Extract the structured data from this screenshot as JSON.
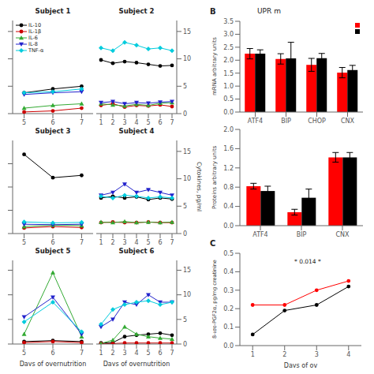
{
  "chart_data": [
    {
      "type": "line",
      "title": "Subject 1",
      "x": [
        5,
        6,
        7
      ],
      "xlim": [
        4.6,
        7.4
      ],
      "xticks": [
        5,
        6,
        7
      ],
      "ylim": [
        0,
        17
      ],
      "yticks": [
        0,
        5,
        10,
        15
      ],
      "tick_labels": "x",
      "legend": "upper left",
      "series": [
        {
          "name": "IL-10",
          "color": "black",
          "marker": "circle",
          "values": [
            3.8,
            4.5,
            5.0
          ]
        },
        {
          "name": "IL-1β",
          "color": "#cc0000",
          "marker": "circle",
          "values": [
            0.3,
            0.5,
            1.0
          ]
        },
        {
          "name": "IL-6",
          "color": "#33aa33",
          "marker": "triangle-up",
          "values": [
            1.0,
            1.5,
            1.8
          ]
        },
        {
          "name": "IL-8",
          "color": "#2222cc",
          "marker": "triangle-down",
          "values": [
            3.5,
            3.8,
            4.0
          ]
        },
        {
          "name": "TNF-α",
          "color": "#00ccdd",
          "marker": "diamond",
          "values": [
            3.8,
            4.0,
            4.5
          ]
        }
      ]
    },
    {
      "type": "line",
      "title": "Subject 2",
      "x": [
        1,
        2,
        3,
        4,
        5,
        6,
        7
      ],
      "xlim": [
        0.6,
        7.4
      ],
      "xticks": [
        1,
        2,
        3,
        4,
        5,
        6,
        7
      ],
      "ylim": [
        0,
        17
      ],
      "yticks": [
        0,
        5,
        10,
        15
      ],
      "series": [
        {
          "name": "IL-10",
          "color": "black",
          "marker": "circle",
          "values": [
            9.8,
            9.2,
            9.5,
            9.3,
            9.0,
            8.7,
            8.8
          ]
        },
        {
          "name": "IL-1β",
          "color": "#cc0000",
          "marker": "circle",
          "values": [
            1.5,
            1.8,
            1.2,
            1.5,
            1.4,
            1.6,
            1.3
          ]
        },
        {
          "name": "IL-6",
          "color": "#33aa33",
          "marker": "triangle-up",
          "values": [
            1.8,
            1.6,
            1.4,
            1.7,
            1.5,
            1.9,
            2.0
          ]
        },
        {
          "name": "IL-8",
          "color": "#2222cc",
          "marker": "triangle-down",
          "values": [
            2.0,
            2.2,
            1.8,
            2.0,
            1.9,
            2.1,
            2.2
          ]
        },
        {
          "name": "TNF-α",
          "color": "#00ccdd",
          "marker": "diamond",
          "values": [
            12.0,
            11.5,
            13.0,
            12.5,
            11.8,
            12.0,
            11.5
          ]
        }
      ]
    },
    {
      "type": "line",
      "title": "Subject 3",
      "x": [
        5,
        6,
        7
      ],
      "xlim": [
        4.6,
        7.4
      ],
      "xticks": [
        5,
        6,
        7
      ],
      "ylim": [
        0,
        20
      ],
      "yticks": [
        0,
        5,
        10,
        15
      ],
      "tick_labels": "x",
      "series": [
        {
          "name": "IL-10",
          "color": "black",
          "marker": "circle",
          "values": [
            17.0,
            12.0,
            12.5
          ]
        },
        {
          "name": "IL-1β",
          "color": "#cc0000",
          "marker": "circle",
          "values": [
            1.2,
            1.5,
            1.3
          ]
        },
        {
          "name": "IL-6",
          "color": "#33aa33",
          "marker": "triangle-up",
          "values": [
            1.5,
            1.8,
            1.7
          ]
        },
        {
          "name": "IL-8",
          "color": "#2222cc",
          "marker": "triangle-down",
          "values": [
            2.0,
            1.9,
            2.0
          ]
        },
        {
          "name": "TNF-α",
          "color": "#00ccdd",
          "marker": "diamond",
          "values": [
            2.5,
            2.3,
            2.4
          ]
        }
      ]
    },
    {
      "type": "line",
      "title": "Subject 4",
      "ylabel": "Cytokines, pg/ml",
      "x": [
        1,
        2,
        3,
        4,
        5,
        6,
        7
      ],
      "xlim": [
        0.6,
        7.4
      ],
      "xticks": [
        1,
        2,
        3,
        4,
        5,
        6,
        7
      ],
      "ylim": [
        0,
        17
      ],
      "yticks": [
        0,
        5,
        10,
        15
      ],
      "series": [
        {
          "name": "IL-10",
          "color": "black",
          "marker": "circle",
          "values": [
            6.5,
            6.8,
            6.5,
            6.7,
            6.2,
            6.5,
            6.3
          ]
        },
        {
          "name": "IL-1β",
          "color": "#cc0000",
          "marker": "circle",
          "values": [
            2.0,
            2.1,
            2.0,
            2.0,
            2.1,
            2.0,
            2.0
          ]
        },
        {
          "name": "IL-6",
          "color": "#33aa33",
          "marker": "triangle-up",
          "values": [
            2.1,
            2.0,
            2.2,
            2.0,
            2.1,
            2.0,
            2.1
          ]
        },
        {
          "name": "IL-8",
          "color": "#2222cc",
          "marker": "triangle-down",
          "values": [
            7.0,
            7.5,
            9.0,
            7.5,
            8.0,
            7.5,
            7.0
          ]
        },
        {
          "name": "TNF-α",
          "color": "#00ccdd",
          "marker": "diamond",
          "values": [
            6.8,
            6.5,
            7.0,
            6.8,
            6.5,
            6.7,
            6.5
          ]
        }
      ]
    },
    {
      "type": "line",
      "title": "Subject 5",
      "xlabel": "Days of overnutrition",
      "x": [
        5,
        6,
        7
      ],
      "xlim": [
        4.6,
        7.4
      ],
      "xticks": [
        5,
        6,
        7
      ],
      "ylim": [
        0,
        17
      ],
      "yticks": [
        0,
        5,
        10,
        15
      ],
      "tick_labels": "x",
      "series": [
        {
          "name": "IL-10",
          "color": "black",
          "marker": "circle",
          "values": [
            0.5,
            0.7,
            0.5
          ]
        },
        {
          "name": "IL-1β",
          "color": "#cc0000",
          "marker": "circle",
          "values": [
            0.3,
            0.5,
            0.3
          ]
        },
        {
          "name": "IL-6",
          "color": "#33aa33",
          "marker": "triangle-up",
          "values": [
            2.0,
            14.5,
            1.5
          ]
        },
        {
          "name": "IL-8",
          "color": "#2222cc",
          "marker": "triangle-down",
          "values": [
            5.5,
            9.5,
            2.0
          ]
        },
        {
          "name": "TNF-α",
          "color": "#00ccdd",
          "marker": "diamond",
          "values": [
            4.5,
            8.5,
            2.5
          ]
        }
      ]
    },
    {
      "type": "line",
      "title": "Subject 6",
      "xlabel": "Days of overnutrition",
      "x": [
        1,
        2,
        3,
        4,
        5,
        6,
        7
      ],
      "xlim": [
        0.6,
        7.4
      ],
      "xticks": [
        1,
        2,
        3,
        4,
        5,
        6,
        7
      ],
      "ylim": [
        0,
        17
      ],
      "yticks": [
        0,
        5,
        10,
        15
      ],
      "series": [
        {
          "name": "IL-10",
          "color": "black",
          "marker": "circle",
          "values": [
            0.2,
            0.3,
            1.5,
            1.8,
            2.0,
            2.2,
            1.8
          ]
        },
        {
          "name": "IL-1β",
          "color": "#cc0000",
          "marker": "circle",
          "values": [
            0.1,
            0.1,
            0.2,
            0.2,
            0.2,
            0.2,
            0.2
          ]
        },
        {
          "name": "IL-6",
          "color": "#33aa33",
          "marker": "triangle-up",
          "values": [
            0.1,
            0.8,
            3.5,
            2.0,
            1.5,
            1.2,
            1.0
          ]
        },
        {
          "name": "IL-8",
          "color": "#2222cc",
          "marker": "triangle-down",
          "values": [
            3.5,
            5.0,
            8.5,
            8.0,
            10.0,
            8.5,
            8.5
          ]
        },
        {
          "name": "TNF-α",
          "color": "#00ccdd",
          "marker": "diamond",
          "values": [
            4.0,
            7.0,
            8.0,
            8.5,
            8.8,
            8.0,
            8.5
          ]
        }
      ]
    },
    {
      "type": "bar",
      "title": "UPR m",
      "annotations": [
        "B"
      ],
      "ylabel": "mRNA arbitrary units",
      "categories": [
        "ATF4",
        "BIP",
        "CHOP",
        "CNX"
      ],
      "ylim": [
        0.0,
        3.5
      ],
      "yticks": [
        {
          "value": 0.0,
          "label": "0.0"
        },
        0.5,
        {
          "value": 1.0,
          "label": "1.0"
        },
        1.5,
        {
          "value": 2.0,
          "label": "2.0"
        },
        2.5,
        {
          "value": 3.0,
          "label": "3.0"
        },
        3.5
      ],
      "legend": "upper right",
      "series": [
        {
          "color": "red",
          "values": [
            2.25,
            2.05,
            1.82,
            1.52
          ],
          "errors": [
            0.2,
            0.2,
            0.25,
            0.2
          ]
        },
        {
          "color": "black",
          "values": [
            2.25,
            2.07,
            2.08,
            1.62
          ],
          "errors": [
            0.15,
            0.62,
            0.18,
            0.18
          ]
        }
      ]
    },
    {
      "type": "bar",
      "ylabel": "Proteins arbitrary units",
      "categories": [
        "ATF4",
        "BIP",
        "CNX"
      ],
      "ylim": [
        0.0,
        2.0
      ],
      "yticks": [
        {
          "value": 0.0,
          "label": "0.0"
        },
        0.4,
        0.8,
        1.2,
        1.6,
        {
          "value": 2.0,
          "label": "2.0"
        }
      ],
      "series": [
        {
          "color": "red",
          "values": [
            0.82,
            0.28,
            1.42
          ],
          "errors": [
            0.06,
            0.06,
            0.1
          ]
        },
        {
          "color": "black",
          "values": [
            0.72,
            0.58,
            1.42
          ],
          "errors": [
            0.1,
            0.18,
            0.1
          ]
        }
      ]
    },
    {
      "type": "line",
      "annotations": [
        "C",
        "* 0.014 *"
      ],
      "xlabel": "Days of ov",
      "ylabel": "8-ισο-PGF2α, pg/mg creatinine",
      "x": [
        1,
        2,
        3,
        4
      ],
      "xlim": [
        0.6,
        4.4
      ],
      "xticks": [
        1,
        2,
        3,
        4
      ],
      "ylim": [
        0.0,
        0.5
      ],
      "yticks": [
        {
          "value": 0.0,
          "label": "0.0"
        },
        0.1,
        0.2,
        0.3,
        0.4,
        0.5
      ],
      "series": [
        {
          "color": "red",
          "marker": "circle",
          "values": [
            0.22,
            0.22,
            0.3,
            0.35
          ]
        },
        {
          "color": "black",
          "marker": "circle",
          "values": [
            0.06,
            0.19,
            0.22,
            0.32
          ]
        }
      ]
    }
  ]
}
